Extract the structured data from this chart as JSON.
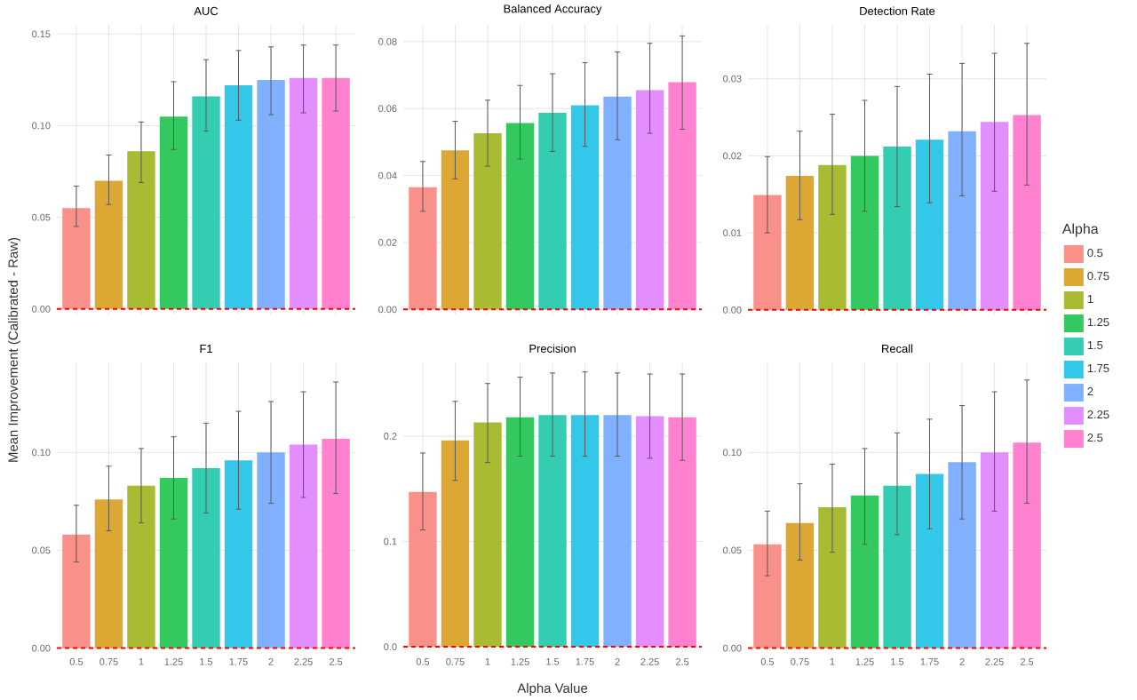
{
  "chart_data": [
    {
      "type": "bar",
      "title": "AUC",
      "ylabel": "Mean Improvement (Calibrated - Raw)",
      "tick_labels": "y",
      "grid": true,
      "categories": [
        "0.5",
        "0.75",
        "1",
        "1.25",
        "1.5",
        "1.75",
        "2",
        "2.25",
        "2.5"
      ],
      "colors": [
        "#F9918A",
        "#DCA833",
        "#A9BB33",
        "#33C860",
        "#33CDB2",
        "#33C7E9",
        "#81B0FF",
        "#E28EFC",
        "#FF81CF"
      ],
      "values": [
        0.055,
        0.07,
        0.086,
        0.105,
        0.116,
        0.122,
        0.125,
        0.126,
        0.126
      ],
      "errors": [
        [
          0.045,
          0.067
        ],
        [
          0.057,
          0.084
        ],
        [
          0.069,
          0.102
        ],
        [
          0.087,
          0.124
        ],
        [
          0.097,
          0.136
        ],
        [
          0.103,
          0.141
        ],
        [
          0.106,
          0.143
        ],
        [
          0.107,
          0.144
        ],
        [
          0.108,
          0.144
        ]
      ],
      "ylim": [
        -0.003,
        0.155
      ],
      "yticks": [
        {
          "value": 0,
          "label": "0.00"
        },
        {
          "value": 0.05,
          "label": "0.05"
        },
        {
          "value": 0.1,
          "label": "0.10"
        },
        {
          "value": 0.15,
          "label": "0.15"
        }
      ],
      "ref_lines": [
        {
          "axis": "y",
          "value": 0,
          "color": "#FF0000",
          "line_style": "dashed"
        }
      ]
    },
    {
      "type": "bar",
      "title": "Balanced Accuracy",
      "tick_labels": "y",
      "grid": true,
      "categories": [
        "0.5",
        "0.75",
        "1",
        "1.25",
        "1.5",
        "1.75",
        "2",
        "2.25",
        "2.5"
      ],
      "colors": [
        "#F9918A",
        "#DCA833",
        "#A9BB33",
        "#33C860",
        "#33CDB2",
        "#33C7E9",
        "#81B0FF",
        "#E28EFC",
        "#FF81CF"
      ],
      "values": [
        0.0365,
        0.0475,
        0.0526,
        0.0557,
        0.0587,
        0.061,
        0.0636,
        0.0655,
        0.0679
      ],
      "errors": [
        [
          0.0293,
          0.0442
        ],
        [
          0.039,
          0.0562
        ],
        [
          0.0428,
          0.0625
        ],
        [
          0.0449,
          0.0669
        ],
        [
          0.0472,
          0.0704
        ],
        [
          0.0487,
          0.0737
        ],
        [
          0.0507,
          0.0769
        ],
        [
          0.0526,
          0.0795
        ],
        [
          0.0538,
          0.0817
        ]
      ],
      "ylim": [
        -0.0015,
        0.085
      ],
      "yticks": [
        {
          "value": 0,
          "label": "0.00"
        },
        {
          "value": 0.02,
          "label": "0.02"
        },
        {
          "value": 0.04,
          "label": "0.04"
        },
        {
          "value": 0.06,
          "label": "0.06"
        },
        {
          "value": 0.08,
          "label": "0.08"
        }
      ],
      "ref_lines": [
        {
          "axis": "y",
          "value": 0,
          "color": "#FF0000",
          "line_style": "dashed"
        }
      ]
    },
    {
      "type": "bar",
      "title": "Detection Rate",
      "tick_labels": "y",
      "grid": true,
      "legend": "right",
      "legend_title": "Alpha",
      "categories": [
        "0.5",
        "0.75",
        "1",
        "1.25",
        "1.5",
        "1.75",
        "2",
        "2.25",
        "2.5"
      ],
      "series": [
        {
          "name": "0.5",
          "color": "#F9918A",
          "values": [
            0.0149,
            null,
            null,
            null,
            null,
            null,
            null,
            null,
            null
          ],
          "errors": [
            [
              0.01,
              0.0199
            ],
            null,
            null,
            null,
            null,
            null,
            null,
            null,
            null
          ]
        },
        {
          "name": "0.75",
          "color": "#DCA833",
          "values": [
            null,
            0.0174,
            null,
            null,
            null,
            null,
            null,
            null,
            null
          ],
          "errors": [
            null,
            [
              0.0117,
              0.0232
            ],
            null,
            null,
            null,
            null,
            null,
            null,
            null
          ]
        },
        {
          "name": "1",
          "color": "#A9BB33",
          "values": [
            null,
            null,
            0.0188,
            null,
            null,
            null,
            null,
            null,
            null
          ],
          "errors": [
            null,
            null,
            [
              0.0124,
              0.0254
            ],
            null,
            null,
            null,
            null,
            null,
            null
          ]
        },
        {
          "name": "1.25",
          "color": "#33C860",
          "values": [
            null,
            null,
            null,
            0.02,
            null,
            null,
            null,
            null,
            null
          ],
          "errors": [
            null,
            null,
            null,
            [
              0.0128,
              0.0272
            ],
            null,
            null,
            null,
            null,
            null
          ]
        },
        {
          "name": "1.5",
          "color": "#33CDB2",
          "values": [
            null,
            null,
            null,
            null,
            0.0212,
            null,
            null,
            null,
            null
          ],
          "errors": [
            null,
            null,
            null,
            null,
            [
              0.0134,
              0.029
            ],
            null,
            null,
            null,
            null
          ]
        },
        {
          "name": "1.75",
          "color": "#33C7E9",
          "values": [
            null,
            null,
            null,
            null,
            null,
            0.0221,
            null,
            null,
            null
          ],
          "errors": [
            null,
            null,
            null,
            null,
            null,
            [
              0.0139,
              0.0306
            ],
            null,
            null,
            null
          ]
        },
        {
          "name": "2",
          "color": "#81B0FF",
          "values": [
            null,
            null,
            null,
            null,
            null,
            null,
            0.0232,
            null,
            null
          ],
          "errors": [
            null,
            null,
            null,
            null,
            null,
            null,
            [
              0.0148,
              0.032
            ],
            null,
            null
          ]
        },
        {
          "name": "2.25",
          "color": "#E28EFC",
          "values": [
            null,
            null,
            null,
            null,
            null,
            null,
            null,
            0.0244,
            null
          ],
          "errors": [
            null,
            null,
            null,
            null,
            null,
            null,
            null,
            [
              0.0154,
              0.0333
            ],
            null
          ]
        },
        {
          "name": "2.5",
          "color": "#FF81CF",
          "values": [
            null,
            null,
            null,
            null,
            null,
            null,
            null,
            null,
            0.0253
          ],
          "errors": [
            null,
            null,
            null,
            null,
            null,
            null,
            null,
            null,
            [
              0.0162,
              0.0346
            ]
          ]
        }
      ],
      "ylim": [
        -0.0006,
        0.037
      ],
      "yticks": [
        {
          "value": 0,
          "label": "0.00"
        },
        {
          "value": 0.01,
          "label": "0.01"
        },
        {
          "value": 0.02,
          "label": "0.02"
        },
        {
          "value": 0.03,
          "label": "0.03"
        }
      ],
      "ref_lines": [
        {
          "axis": "y",
          "value": 0,
          "color": "#FF0000",
          "line_style": "dashed"
        }
      ]
    },
    {
      "type": "bar",
      "title": "F1",
      "grid": true,
      "categories": [
        "0.5",
        "0.75",
        "1",
        "1.25",
        "1.5",
        "1.75",
        "2",
        "2.25",
        "2.5"
      ],
      "colors": [
        "#F9918A",
        "#DCA833",
        "#A9BB33",
        "#33C860",
        "#33CDB2",
        "#33C7E9",
        "#81B0FF",
        "#E28EFC",
        "#FF81CF"
      ],
      "values": [
        0.058,
        0.076,
        0.083,
        0.087,
        0.092,
        0.096,
        0.1,
        0.104,
        0.107
      ],
      "errors": [
        [
          0.044,
          0.073
        ],
        [
          0.06,
          0.093
        ],
        [
          0.064,
          0.102
        ],
        [
          0.066,
          0.108
        ],
        [
          0.069,
          0.115
        ],
        [
          0.071,
          0.121
        ],
        [
          0.074,
          0.126
        ],
        [
          0.077,
          0.131
        ],
        [
          0.079,
          0.136
        ]
      ],
      "ylim": [
        -0.002,
        0.146
      ],
      "yticks": [
        {
          "value": 0,
          "label": "0.00"
        },
        {
          "value": 0.05,
          "label": "0.05"
        },
        {
          "value": 0.1,
          "label": "0.10"
        }
      ],
      "ref_lines": [
        {
          "axis": "y",
          "value": 0,
          "color": "#FF0000",
          "line_style": "dashed"
        }
      ]
    },
    {
      "type": "bar",
      "title": "Precision",
      "xlabel": "Alpha Value",
      "grid": true,
      "categories": [
        "0.5",
        "0.75",
        "1",
        "1.25",
        "1.5",
        "1.75",
        "2",
        "2.25",
        "2.5"
      ],
      "colors": [
        "#F9918A",
        "#DCA833",
        "#A9BB33",
        "#33C860",
        "#33CDB2",
        "#33C7E9",
        "#81B0FF",
        "#E28EFC",
        "#FF81CF"
      ],
      "values": [
        0.147,
        0.196,
        0.213,
        0.218,
        0.22,
        0.22,
        0.22,
        0.219,
        0.218
      ],
      "errors": [
        [
          0.111,
          0.184
        ],
        [
          0.158,
          0.233
        ],
        [
          0.175,
          0.25
        ],
        [
          0.181,
          0.256
        ],
        [
          0.181,
          0.26
        ],
        [
          0.181,
          0.261
        ],
        [
          0.181,
          0.26
        ],
        [
          0.179,
          0.259
        ],
        [
          0.177,
          0.259
        ]
      ],
      "ylim": [
        -0.005,
        0.27
      ],
      "yticks": [
        {
          "value": 0,
          "label": "0.0"
        },
        {
          "value": 0.1,
          "label": "0.1"
        },
        {
          "value": 0.2,
          "label": "0.2"
        }
      ],
      "ref_lines": [
        {
          "axis": "y",
          "value": 0,
          "color": "#FF0000",
          "line_style": "dashed"
        }
      ]
    },
    {
      "type": "bar",
      "title": "Recall",
      "grid": true,
      "categories": [
        "0.5",
        "0.75",
        "1",
        "1.25",
        "1.5",
        "1.75",
        "2",
        "2.25",
        "2.5"
      ],
      "colors": [
        "#F9918A",
        "#DCA833",
        "#A9BB33",
        "#33C860",
        "#33CDB2",
        "#33C7E9",
        "#81B0FF",
        "#E28EFC",
        "#FF81CF"
      ],
      "values": [
        0.053,
        0.064,
        0.072,
        0.078,
        0.083,
        0.089,
        0.095,
        0.1,
        0.105
      ],
      "errors": [
        [
          0.037,
          0.07
        ],
        [
          0.045,
          0.084
        ],
        [
          0.049,
          0.094
        ],
        [
          0.053,
          0.102
        ],
        [
          0.058,
          0.11
        ],
        [
          0.061,
          0.117
        ],
        [
          0.066,
          0.124
        ],
        [
          0.07,
          0.131
        ],
        [
          0.074,
          0.137
        ]
      ],
      "ylim": [
        -0.002,
        0.146
      ],
      "yticks": [
        {
          "value": 0,
          "label": "0.00"
        },
        {
          "value": 0.05,
          "label": "0.05"
        },
        {
          "value": 0.1,
          "label": "0.10"
        }
      ],
      "ref_lines": [
        {
          "axis": "y",
          "value": 0,
          "color": "#FF0000",
          "line_style": "dashed"
        }
      ]
    }
  ]
}
